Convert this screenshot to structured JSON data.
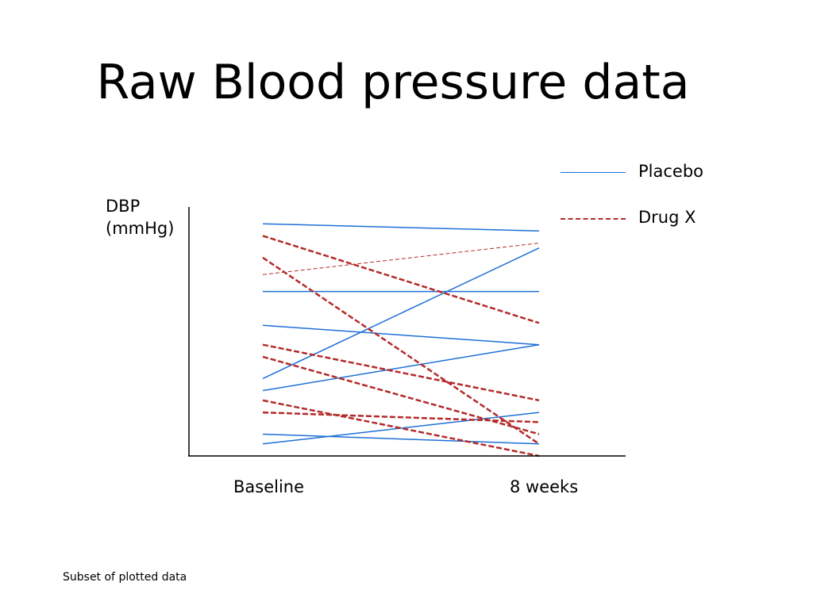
{
  "slide": {
    "title": "Raw Blood pressure data",
    "footnote": "Subset of plotted data"
  },
  "colors": {
    "placebo": "#1f6fd6",
    "drug": "#b52a2a",
    "axis": "#000000"
  },
  "chart_data": {
    "type": "line",
    "title": "Raw Blood pressure data",
    "xlabel": "",
    "ylabel": "DBP (mmHg)",
    "ylabel_lines": [
      "DBP",
      "(mmHg)"
    ],
    "categories": [
      "Baseline",
      "8 weeks"
    ],
    "ylim": [
      0,
      100
    ],
    "grid": false,
    "legend": "top-right",
    "y_ticks_shown": false,
    "legend_entries": [
      {
        "name": "Placebo",
        "style": "solid",
        "color": "#1f6fd6"
      },
      {
        "name": "Drug X",
        "style": "dashed",
        "color": "#b52a2a"
      }
    ],
    "series": [
      {
        "group": "Placebo",
        "values": [
          96,
          93
        ]
      },
      {
        "group": "Placebo",
        "values": [
          68,
          68
        ]
      },
      {
        "group": "Placebo",
        "values": [
          54,
          46
        ]
      },
      {
        "group": "Placebo",
        "values": [
          32,
          86
        ]
      },
      {
        "group": "Placebo",
        "values": [
          27,
          46
        ]
      },
      {
        "group": "Placebo",
        "values": [
          9,
          5
        ]
      },
      {
        "group": "Placebo",
        "values": [
          5,
          18
        ]
      },
      {
        "group": "Drug X",
        "values": [
          91,
          55
        ]
      },
      {
        "group": "Drug X",
        "values": [
          82,
          5
        ]
      },
      {
        "group": "Drug X",
        "values": [
          75,
          88
        ],
        "thin": true
      },
      {
        "group": "Drug X",
        "values": [
          46,
          23
        ]
      },
      {
        "group": "Drug X",
        "values": [
          41,
          9
        ]
      },
      {
        "group": "Drug X",
        "values": [
          23,
          0
        ]
      },
      {
        "group": "Drug X",
        "values": [
          18,
          14
        ]
      }
    ]
  }
}
